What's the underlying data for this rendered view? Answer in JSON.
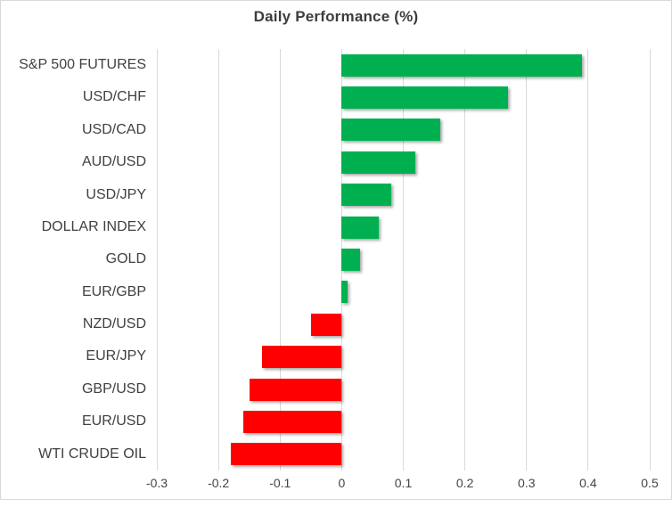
{
  "chart_data": {
    "type": "bar",
    "orientation": "horizontal",
    "title": "Daily Performance (%)",
    "categories": [
      "S&P 500 FUTURES",
      "USD/CHF",
      "USD/CAD",
      "AUD/USD",
      "USD/JPY",
      "DOLLAR INDEX",
      "GOLD",
      "EUR/GBP",
      "NZD/USD",
      "EUR/JPY",
      "GBP/USD",
      "EUR/USD",
      "WTI CRUDE OIL"
    ],
    "values": [
      0.39,
      0.27,
      0.16,
      0.12,
      0.08,
      0.06,
      0.03,
      0.01,
      -0.05,
      -0.13,
      -0.15,
      -0.16,
      -0.18
    ],
    "xlim": [
      -0.3,
      0.5
    ],
    "x_ticks": [
      -0.3,
      -0.2,
      -0.1,
      0,
      0.1,
      0.2,
      0.3,
      0.4,
      0.5
    ],
    "x_tick_labels": [
      "-0.3",
      "-0.2",
      "-0.1",
      "0",
      "0.1",
      "0.2",
      "0.3",
      "0.4",
      "0.5"
    ],
    "grid": true,
    "legend": false,
    "xlabel": "",
    "ylabel": "",
    "colors": {
      "positive": "#00B050",
      "negative": "#FF0000",
      "gridline": "#D9D9D9",
      "border": "#D9D9D9",
      "title_text": "#3D3D3D",
      "label_text": "#404040",
      "tick_text": "#444444"
    }
  }
}
